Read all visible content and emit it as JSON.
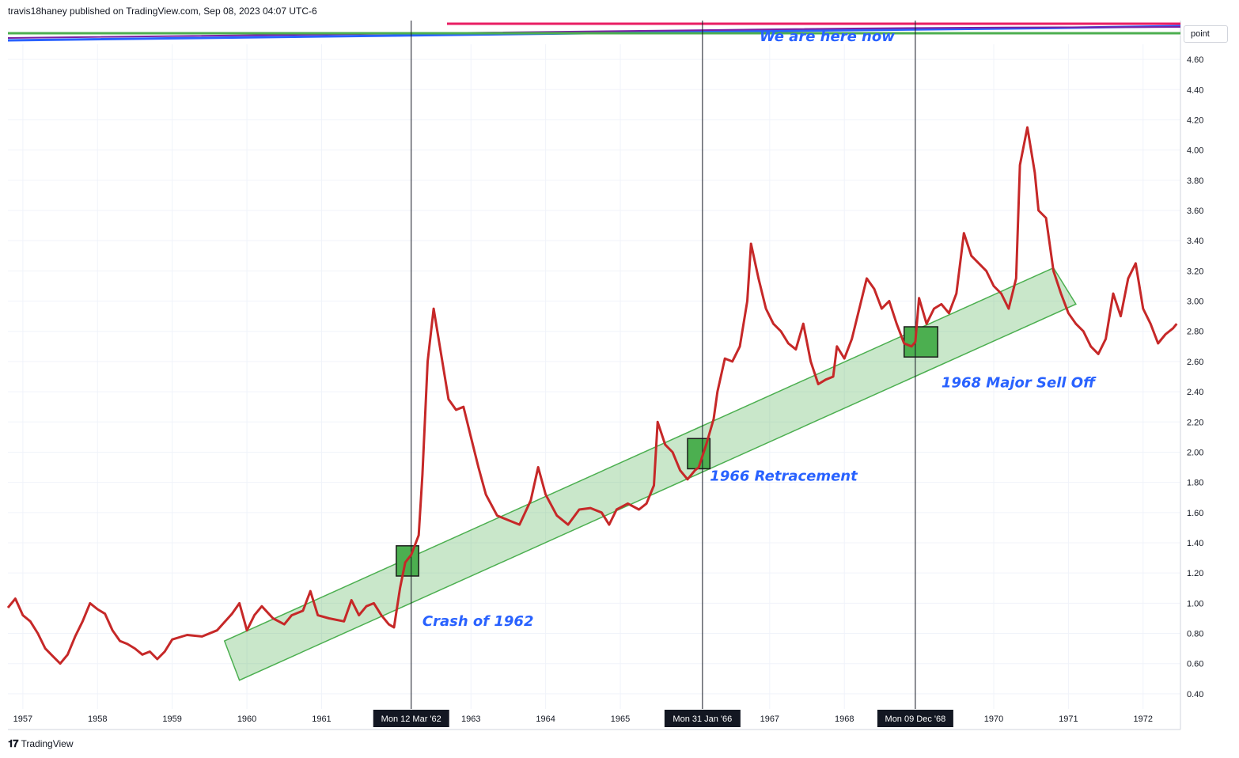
{
  "header": {
    "publisher": "travis18haney published on TradingView.com, Sep 08, 2023 04:07 UTC-6"
  },
  "footer": {
    "brand": "TradingView"
  },
  "price_axis": {
    "unit_label": "point"
  },
  "chart_data": {
    "type": "line",
    "title": "",
    "xlabel": "",
    "ylabel": "",
    "xlim": [
      1956.8,
      1972.5
    ],
    "ylim": [
      0.3,
      4.7
    ],
    "y_ticks": [
      0.4,
      0.6,
      0.8,
      1.0,
      1.2,
      1.4,
      1.6,
      1.8,
      2.0,
      2.2,
      2.4,
      2.6,
      2.8,
      3.0,
      3.2,
      3.4,
      3.6,
      3.8,
      4.0,
      4.2,
      4.4,
      4.6
    ],
    "x_ticks": [
      {
        "year": 1957,
        "label": "1957"
      },
      {
        "year": 1958,
        "label": "1958"
      },
      {
        "year": 1959,
        "label": "1959"
      },
      {
        "year": 1960,
        "label": "1960"
      },
      {
        "year": 1961,
        "label": "1961"
      },
      {
        "year": 1963,
        "label": "1963"
      },
      {
        "year": 1964,
        "label": "1964"
      },
      {
        "year": 1965,
        "label": "1965"
      },
      {
        "year": 1967,
        "label": "1967"
      },
      {
        "year": 1968,
        "label": "1968"
      },
      {
        "year": 1970,
        "label": "1970"
      },
      {
        "year": 1971,
        "label": "1971"
      },
      {
        "year": 1972,
        "label": "1972"
      }
    ],
    "grid": true,
    "series": [
      {
        "color": "#c62828",
        "points": [
          [
            1956.8,
            0.97
          ],
          [
            1956.9,
            1.03
          ],
          [
            1957.0,
            0.92
          ],
          [
            1957.1,
            0.88
          ],
          [
            1957.2,
            0.8
          ],
          [
            1957.3,
            0.7
          ],
          [
            1957.4,
            0.65
          ],
          [
            1957.5,
            0.6
          ],
          [
            1957.6,
            0.66
          ],
          [
            1957.7,
            0.78
          ],
          [
            1957.8,
            0.88
          ],
          [
            1957.9,
            1.0
          ],
          [
            1958.0,
            0.96
          ],
          [
            1958.1,
            0.93
          ],
          [
            1958.2,
            0.82
          ],
          [
            1958.3,
            0.75
          ],
          [
            1958.4,
            0.73
          ],
          [
            1958.5,
            0.7
          ],
          [
            1958.6,
            0.66
          ],
          [
            1958.7,
            0.68
          ],
          [
            1958.8,
            0.63
          ],
          [
            1958.9,
            0.68
          ],
          [
            1959.0,
            0.76
          ],
          [
            1959.2,
            0.79
          ],
          [
            1959.4,
            0.78
          ],
          [
            1959.6,
            0.82
          ],
          [
            1959.8,
            0.93
          ],
          [
            1959.9,
            1.0
          ],
          [
            1960.0,
            0.82
          ],
          [
            1960.1,
            0.92
          ],
          [
            1960.2,
            0.98
          ],
          [
            1960.35,
            0.9
          ],
          [
            1960.5,
            0.86
          ],
          [
            1960.6,
            0.92
          ],
          [
            1960.75,
            0.95
          ],
          [
            1960.85,
            1.08
          ],
          [
            1960.95,
            0.92
          ],
          [
            1961.1,
            0.9
          ],
          [
            1961.3,
            0.88
          ],
          [
            1961.4,
            1.02
          ],
          [
            1961.5,
            0.92
          ],
          [
            1961.6,
            0.98
          ],
          [
            1961.7,
            1.0
          ],
          [
            1961.8,
            0.92
          ],
          [
            1961.9,
            0.86
          ],
          [
            1961.97,
            0.84
          ],
          [
            1962.05,
            1.1
          ],
          [
            1962.12,
            1.27
          ],
          [
            1962.2,
            1.32
          ],
          [
            1962.3,
            1.45
          ],
          [
            1962.35,
            1.85
          ],
          [
            1962.42,
            2.6
          ],
          [
            1962.5,
            2.95
          ],
          [
            1962.6,
            2.65
          ],
          [
            1962.7,
            2.35
          ],
          [
            1962.8,
            2.28
          ],
          [
            1962.9,
            2.3
          ],
          [
            1963.0,
            2.1
          ],
          [
            1963.1,
            1.9
          ],
          [
            1963.2,
            1.72
          ],
          [
            1963.35,
            1.58
          ],
          [
            1963.5,
            1.55
          ],
          [
            1963.65,
            1.52
          ],
          [
            1963.8,
            1.68
          ],
          [
            1963.9,
            1.9
          ],
          [
            1964.0,
            1.72
          ],
          [
            1964.15,
            1.58
          ],
          [
            1964.3,
            1.52
          ],
          [
            1964.45,
            1.62
          ],
          [
            1964.6,
            1.63
          ],
          [
            1964.75,
            1.6
          ],
          [
            1964.85,
            1.52
          ],
          [
            1964.95,
            1.62
          ],
          [
            1965.1,
            1.66
          ],
          [
            1965.25,
            1.62
          ],
          [
            1965.35,
            1.66
          ],
          [
            1965.45,
            1.78
          ],
          [
            1965.5,
            2.2
          ],
          [
            1965.6,
            2.05
          ],
          [
            1965.7,
            2.0
          ],
          [
            1965.8,
            1.88
          ],
          [
            1965.9,
            1.82
          ],
          [
            1966.0,
            1.88
          ],
          [
            1966.05,
            1.9
          ],
          [
            1966.15,
            2.05
          ],
          [
            1966.25,
            2.22
          ],
          [
            1966.3,
            2.4
          ],
          [
            1966.4,
            2.62
          ],
          [
            1966.5,
            2.6
          ],
          [
            1966.6,
            2.7
          ],
          [
            1966.7,
            3.0
          ],
          [
            1966.75,
            3.38
          ],
          [
            1966.85,
            3.15
          ],
          [
            1966.95,
            2.95
          ],
          [
            1967.05,
            2.85
          ],
          [
            1967.15,
            2.8
          ],
          [
            1967.25,
            2.72
          ],
          [
            1967.35,
            2.68
          ],
          [
            1967.45,
            2.85
          ],
          [
            1967.55,
            2.6
          ],
          [
            1967.65,
            2.45
          ],
          [
            1967.75,
            2.48
          ],
          [
            1967.85,
            2.5
          ],
          [
            1967.9,
            2.7
          ],
          [
            1968.0,
            2.62
          ],
          [
            1968.1,
            2.75
          ],
          [
            1968.2,
            2.95
          ],
          [
            1968.3,
            3.15
          ],
          [
            1968.4,
            3.08
          ],
          [
            1968.5,
            2.95
          ],
          [
            1968.6,
            3.0
          ],
          [
            1968.7,
            2.85
          ],
          [
            1968.8,
            2.72
          ],
          [
            1968.9,
            2.7
          ],
          [
            1968.95,
            2.73
          ],
          [
            1969.0,
            3.02
          ],
          [
            1969.1,
            2.85
          ],
          [
            1969.2,
            2.95
          ],
          [
            1969.3,
            2.98
          ],
          [
            1969.4,
            2.92
          ],
          [
            1969.5,
            3.05
          ],
          [
            1969.6,
            3.45
          ],
          [
            1969.7,
            3.3
          ],
          [
            1969.8,
            3.25
          ],
          [
            1969.9,
            3.2
          ],
          [
            1970.0,
            3.1
          ],
          [
            1970.1,
            3.05
          ],
          [
            1970.2,
            2.95
          ],
          [
            1970.3,
            3.15
          ],
          [
            1970.35,
            3.9
          ],
          [
            1970.45,
            4.15
          ],
          [
            1970.55,
            3.85
          ],
          [
            1970.6,
            3.6
          ],
          [
            1970.7,
            3.55
          ],
          [
            1970.8,
            3.2
          ],
          [
            1970.9,
            3.05
          ],
          [
            1971.0,
            2.92
          ],
          [
            1971.1,
            2.85
          ],
          [
            1971.2,
            2.8
          ],
          [
            1971.3,
            2.7
          ],
          [
            1971.4,
            2.65
          ],
          [
            1971.5,
            2.75
          ],
          [
            1971.6,
            3.05
          ],
          [
            1971.7,
            2.9
          ],
          [
            1971.8,
            3.15
          ],
          [
            1971.9,
            3.25
          ],
          [
            1972.0,
            2.95
          ],
          [
            1972.1,
            2.85
          ],
          [
            1972.2,
            2.72
          ],
          [
            1972.3,
            2.78
          ],
          [
            1972.4,
            2.82
          ],
          [
            1972.45,
            2.85
          ]
        ]
      }
    ],
    "channel": {
      "upper": [
        [
          1959.7,
          0.75
        ],
        [
          1970.8,
          3.22
        ]
      ],
      "lower": [
        [
          1959.9,
          0.49
        ],
        [
          1971.1,
          2.98
        ]
      ]
    },
    "highlight_boxes": [
      {
        "x": [
          1962.0,
          1962.3
        ],
        "y": [
          1.18,
          1.38
        ]
      },
      {
        "x": [
          1965.9,
          1966.2
        ],
        "y": [
          1.89,
          2.09
        ]
      },
      {
        "x": [
          1968.8,
          1969.25
        ],
        "y": [
          2.63,
          2.83
        ]
      }
    ],
    "vertical_markers": [
      {
        "x": 1962.2,
        "label": "Mon 12 Mar '62"
      },
      {
        "x": 1966.1,
        "label": "Mon 31 Jan '66"
      },
      {
        "x": 1968.95,
        "label": "Mon 09 Dec '68"
      }
    ],
    "annotations": [
      {
        "text": "Crash of 1962",
        "x": 1962.35,
        "y": 0.85
      },
      {
        "text": "1966 Retracement",
        "x": 1966.2,
        "y": 1.81
      },
      {
        "text": "1968 Major Sell Off",
        "x": 1969.3,
        "y": 2.43
      }
    ],
    "overlay_text": "We are here now"
  }
}
